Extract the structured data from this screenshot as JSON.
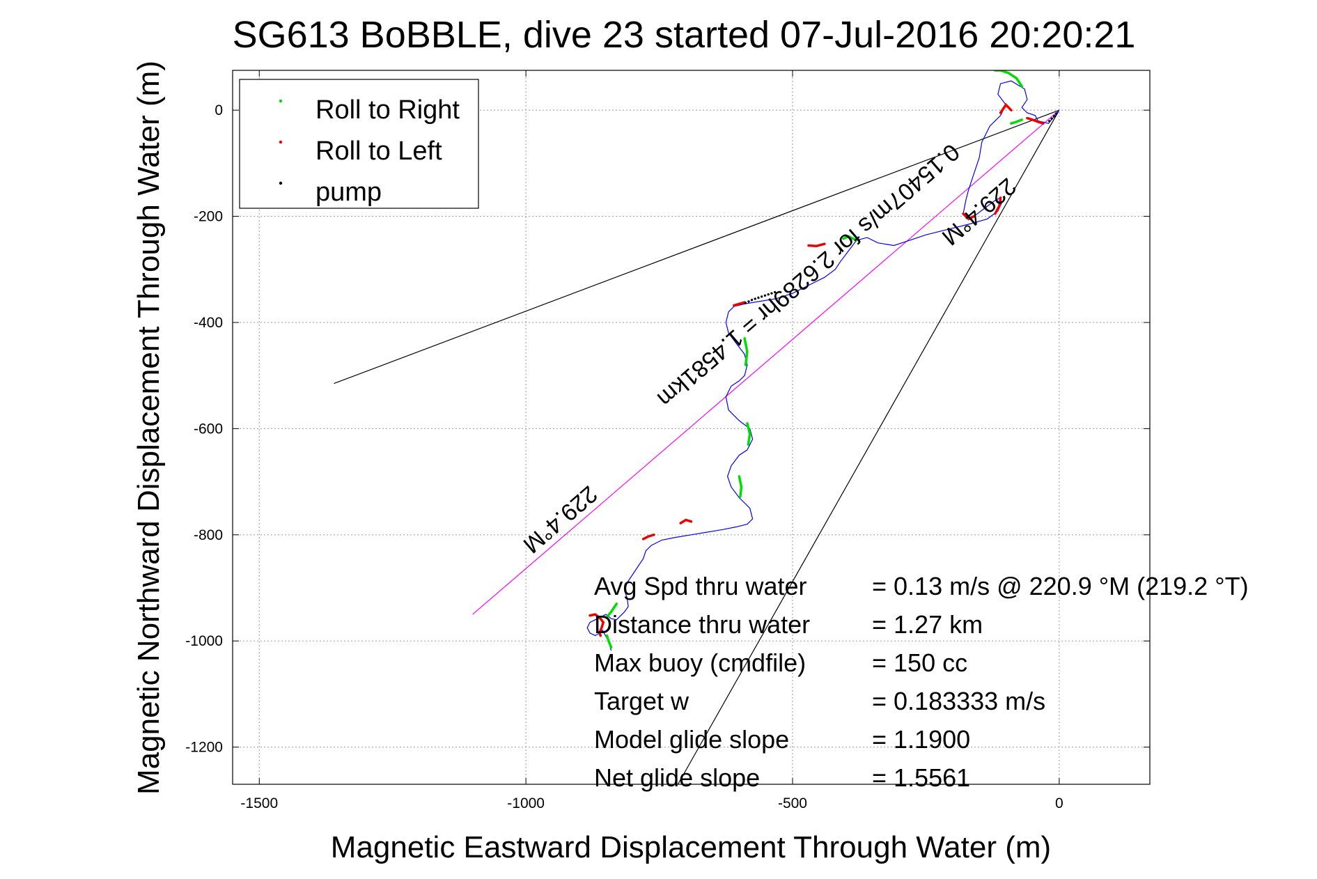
{
  "chart_data": {
    "type": "line",
    "title": "SG613 BoBBLE, dive 23 started 07-Jul-2016 20:20:21",
    "xlabel": "Magnetic Eastward Displacement Through Water (m)",
    "ylabel": "Magnetic Northward Displacement Through Water (m)",
    "xlim": [
      -1550,
      170
    ],
    "ylim": [
      -1270,
      75
    ],
    "xticks": [
      -1500,
      -1000,
      -500,
      0
    ],
    "yticks": [
      0,
      -200,
      -400,
      -600,
      -800,
      -1000,
      -1200
    ],
    "xtick_labels": [
      "-1500",
      "-1000",
      "-500",
      "0"
    ],
    "ytick_labels": [
      "0",
      "-200",
      "-400",
      "-600",
      "-800",
      "-1000",
      "-1200"
    ],
    "grid": true,
    "legend_position": "top-left",
    "legend": [
      {
        "label": "Roll to Right",
        "color": "#00dd00"
      },
      {
        "label": "Roll to Left",
        "color": "#ee0000"
      },
      {
        "label": "pump",
        "color": "#000000"
      }
    ],
    "colors": {
      "track": "#0000ff",
      "right": "#00dd00",
      "left": "#ee0000",
      "pump": "#000000",
      "heading": "#ff00ff",
      "cone": "#000000"
    },
    "track": {
      "name": "track",
      "x": [
        0,
        -20,
        -40,
        -45,
        -60,
        -70,
        -60,
        -65,
        -90,
        -110,
        -115,
        -100,
        -110,
        -130,
        -145,
        -150,
        -160,
        -170,
        -175,
        -180,
        -170,
        -160,
        -140,
        -120,
        -110,
        -108,
        -115,
        -135,
        -170,
        -210,
        -250,
        -280,
        -310,
        -340,
        -360,
        -380,
        -395,
        -410,
        -420,
        -440,
        -470,
        -500,
        -530,
        -560,
        -590,
        -610,
        -620,
        -625,
        -620,
        -605,
        -590,
        -585,
        -590,
        -600,
        -615,
        -625,
        -620,
        -600,
        -580,
        -575,
        -585,
        -600,
        -615,
        -622,
        -615,
        -600,
        -580,
        -575,
        -585,
        -605,
        -630,
        -660,
        -690,
        -720,
        -745,
        -765,
        -775,
        -780,
        -790,
        -800,
        -810,
        -815,
        -810,
        -808,
        -815,
        -825,
        -830,
        -840,
        -850,
        -860,
        -870,
        -880,
        -885,
        -880,
        -870,
        -862,
        -856,
        -852,
        -848,
        -845,
        -843,
        -842,
        -840
      ],
      "y": [
        0,
        -25,
        -20,
        -10,
        -5,
        5,
        20,
        40,
        55,
        50,
        30,
        10,
        -10,
        -30,
        -60,
        -90,
        -120,
        -150,
        -170,
        -195,
        -205,
        -200,
        -185,
        -170,
        -165,
        -175,
        -190,
        -205,
        -215,
        -225,
        -235,
        -245,
        -255,
        -250,
        -240,
        -245,
        -265,
        -285,
        -300,
        -315,
        -330,
        -345,
        -355,
        -360,
        -365,
        -370,
        -380,
        -400,
        -420,
        -440,
        -460,
        -480,
        -500,
        -510,
        -520,
        -540,
        -565,
        -585,
        -600,
        -620,
        -640,
        -650,
        -670,
        -690,
        -710,
        -730,
        -750,
        -770,
        -780,
        -785,
        -790,
        -795,
        -800,
        -805,
        -810,
        -820,
        -830,
        -845,
        -860,
        -875,
        -890,
        -905,
        -920,
        -935,
        -945,
        -955,
        -960,
        -958,
        -950,
        -955,
        -960,
        -965,
        -975,
        -985,
        -990,
        -985,
        -980,
        -988,
        -995,
        -1000,
        -1005,
        -1012,
        -1018
      ]
    },
    "roll_to_right": [
      {
        "x": [
          -120,
          -110,
          -95,
          -80,
          -70
        ],
        "y": [
          75,
          75,
          70,
          60,
          45
        ]
      },
      {
        "x": [
          -90,
          -80,
          -70
        ],
        "y": [
          -25,
          -22,
          -18
        ]
      },
      {
        "x": [
          -380,
          -395,
          -405
        ],
        "y": [
          -245,
          -238,
          -242
        ]
      },
      {
        "x": [
          -590,
          -585,
          -588
        ],
        "y": [
          -430,
          -455,
          -480
        ]
      },
      {
        "x": [
          -585,
          -580,
          -583
        ],
        "y": [
          -590,
          -610,
          -630
        ]
      },
      {
        "x": [
          -600,
          -596,
          -598
        ],
        "y": [
          -690,
          -710,
          -728
        ]
      },
      {
        "x": [
          -830,
          -840,
          -848
        ],
        "y": [
          -930,
          -945,
          -955
        ]
      },
      {
        "x": [
          -848,
          -845,
          -840
        ],
        "y": [
          -990,
          -1000,
          -1012
        ]
      }
    ],
    "roll_to_left": [
      {
        "x": [
          -110,
          -100,
          -90
        ],
        "y": [
          -5,
          10,
          0
        ]
      },
      {
        "x": [
          -60,
          -50,
          -40,
          -30
        ],
        "y": [
          -15,
          -18,
          -22,
          -25
        ]
      },
      {
        "x": [
          -110,
          -112,
          -120
        ],
        "y": [
          -165,
          -180,
          -195
        ]
      },
      {
        "x": [
          -180,
          -170,
          -160
        ],
        "y": [
          -195,
          -205,
          -200
        ]
      },
      {
        "x": [
          -440,
          -455,
          -470
        ],
        "y": [
          -252,
          -256,
          -255
        ]
      },
      {
        "x": [
          -610,
          -600,
          -590
        ],
        "y": [
          -368,
          -365,
          -362
        ]
      },
      {
        "x": [
          -690,
          -700,
          -710
        ],
        "y": [
          -775,
          -772,
          -778
        ]
      },
      {
        "x": [
          -760,
          -770,
          -780
        ],
        "y": [
          -800,
          -803,
          -808
        ]
      },
      {
        "x": [
          -880,
          -870,
          -860,
          -855
        ],
        "y": [
          -952,
          -950,
          -958,
          -965
        ]
      },
      {
        "x": [
          -855,
          -858,
          -862,
          -860
        ],
        "y": [
          -965,
          -975,
          -985,
          -990
        ]
      }
    ],
    "pump": [
      {
        "x": [
          -590,
          -575,
          -560,
          -545,
          -530
        ],
        "y": [
          -364,
          -357,
          -352,
          -347,
          -342
        ]
      },
      {
        "x": [
          -20,
          -10,
          -5
        ],
        "y": [
          -22,
          -12,
          -5
        ]
      }
    ],
    "heading_line": {
      "x": [
        0,
        -1100
      ],
      "y": [
        0,
        -950
      ]
    },
    "cone": [
      {
        "x": [
          0,
          -1360
        ],
        "y": [
          0,
          -515
        ]
      },
      {
        "x": [
          0,
          -715
        ],
        "y": [
          0,
          -1270
        ]
      }
    ],
    "annotations": [
      {
        "text": "229.4°M",
        "x": -160,
        "y": -180,
        "rotation": 180
      },
      {
        "text": "0.15407m/s for 2.6289hr = 1.4581km",
        "x": -480,
        "y": -300,
        "rotation": 180
      },
      {
        "text": "229.4°M",
        "x": -945,
        "y": -760,
        "rotation": 180
      }
    ],
    "stats": [
      {
        "label": "Avg Spd thru water",
        "value": "=  0.13 m/s @ 220.9 °M (219.2 °T)"
      },
      {
        "label": "Distance thru water",
        "value": "=  1.27 km"
      },
      {
        "label": "Max buoy (cmdfile)",
        "value": "= 150 cc"
      },
      {
        "label": "Target w",
        "value": "= 0.183333 m/s"
      },
      {
        "label": "Model glide slope",
        "value": "= 1.1900"
      },
      {
        "label": "Net glide slope",
        "value": "= 1.5561"
      }
    ]
  }
}
